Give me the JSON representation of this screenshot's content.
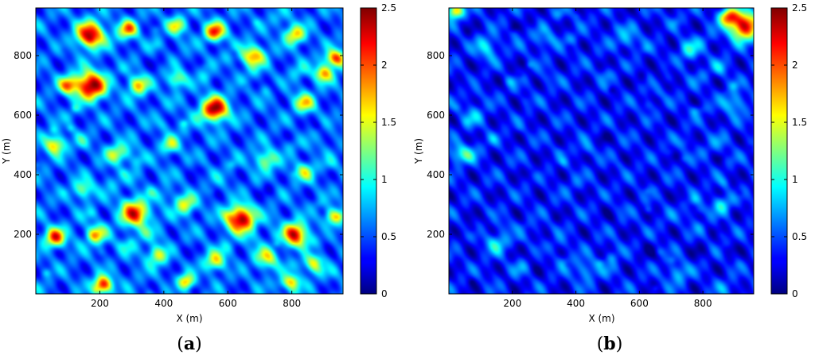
{
  "chart_data": [
    {
      "type": "heatmap",
      "panel_label": {
        "open": "(",
        "letter": "a",
        "close": ")"
      },
      "xlabel": "X (m)",
      "ylabel": "Y (m)",
      "xlim": [
        0,
        960
      ],
      "ylim": [
        0,
        960
      ],
      "xticks": [
        200,
        400,
        600,
        800
      ],
      "yticks": [
        200,
        400,
        600,
        800
      ],
      "colorbar": {
        "min": 0,
        "max": 2.5,
        "ticks": [
          0,
          0.5,
          1,
          1.5,
          2,
          2.5
        ]
      },
      "colormap": "jet",
      "field": {
        "background": 0.55,
        "hotspots": [
          {
            "x": 170,
            "y": 870,
            "v": 2.4,
            "r": 30
          },
          {
            "x": 290,
            "y": 890,
            "v": 1.9,
            "r": 20
          },
          {
            "x": 440,
            "y": 900,
            "v": 1.5,
            "r": 20
          },
          {
            "x": 560,
            "y": 880,
            "v": 2.1,
            "r": 22
          },
          {
            "x": 680,
            "y": 800,
            "v": 1.9,
            "r": 25
          },
          {
            "x": 810,
            "y": 870,
            "v": 1.7,
            "r": 22
          },
          {
            "x": 940,
            "y": 790,
            "v": 2.0,
            "r": 20
          },
          {
            "x": 100,
            "y": 700,
            "v": 1.8,
            "r": 20
          },
          {
            "x": 170,
            "y": 700,
            "v": 2.5,
            "r": 32
          },
          {
            "x": 320,
            "y": 700,
            "v": 1.7,
            "r": 22
          },
          {
            "x": 440,
            "y": 720,
            "v": 1.4,
            "r": 20
          },
          {
            "x": 560,
            "y": 620,
            "v": 2.5,
            "r": 28
          },
          {
            "x": 840,
            "y": 640,
            "v": 1.6,
            "r": 22
          },
          {
            "x": 900,
            "y": 740,
            "v": 1.8,
            "r": 20
          },
          {
            "x": 60,
            "y": 500,
            "v": 1.7,
            "r": 22
          },
          {
            "x": 250,
            "y": 470,
            "v": 1.4,
            "r": 22
          },
          {
            "x": 420,
            "y": 500,
            "v": 1.4,
            "r": 20
          },
          {
            "x": 720,
            "y": 450,
            "v": 1.4,
            "r": 24
          },
          {
            "x": 840,
            "y": 410,
            "v": 1.3,
            "r": 22
          },
          {
            "x": 150,
            "y": 350,
            "v": 1.3,
            "r": 22
          },
          {
            "x": 310,
            "y": 270,
            "v": 2.2,
            "r": 30
          },
          {
            "x": 470,
            "y": 300,
            "v": 1.5,
            "r": 22
          },
          {
            "x": 640,
            "y": 250,
            "v": 2.5,
            "r": 30
          },
          {
            "x": 810,
            "y": 200,
            "v": 2.3,
            "r": 26
          },
          {
            "x": 930,
            "y": 260,
            "v": 1.6,
            "r": 20
          },
          {
            "x": 60,
            "y": 190,
            "v": 2.1,
            "r": 22
          },
          {
            "x": 190,
            "y": 200,
            "v": 1.6,
            "r": 22
          },
          {
            "x": 380,
            "y": 130,
            "v": 1.5,
            "r": 22
          },
          {
            "x": 560,
            "y": 110,
            "v": 1.6,
            "r": 22
          },
          {
            "x": 720,
            "y": 120,
            "v": 1.6,
            "r": 24
          },
          {
            "x": 870,
            "y": 100,
            "v": 1.5,
            "r": 22
          },
          {
            "x": 210,
            "y": 30,
            "v": 2.3,
            "r": 20
          },
          {
            "x": 470,
            "y": 40,
            "v": 1.8,
            "r": 18
          },
          {
            "x": 800,
            "y": 40,
            "v": 1.5,
            "r": 18
          }
        ]
      }
    },
    {
      "type": "heatmap",
      "panel_label": {
        "open": "(",
        "letter": "b",
        "close": ")"
      },
      "xlabel": "X (m)",
      "ylabel": "Y (m)",
      "xlim": [
        0,
        960
      ],
      "ylim": [
        0,
        960
      ],
      "xticks": [
        200,
        400,
        600,
        800
      ],
      "yticks": [
        200,
        400,
        600,
        800
      ],
      "colorbar": {
        "min": 0,
        "max": 2.5,
        "ticks": [
          0,
          0.5,
          1,
          1.5,
          2,
          2.5
        ]
      },
      "colormap": "jet",
      "field": {
        "background": 0.35,
        "hotspots": [
          {
            "x": 930,
            "y": 900,
            "v": 2.4,
            "r": 32
          },
          {
            "x": 880,
            "y": 930,
            "v": 1.8,
            "r": 20
          },
          {
            "x": 20,
            "y": 950,
            "v": 1.8,
            "r": 18
          },
          {
            "x": 120,
            "y": 830,
            "v": 0.9,
            "r": 25
          },
          {
            "x": 300,
            "y": 860,
            "v": 0.8,
            "r": 25
          },
          {
            "x": 560,
            "y": 850,
            "v": 0.8,
            "r": 25
          },
          {
            "x": 760,
            "y": 820,
            "v": 0.9,
            "r": 25
          },
          {
            "x": 900,
            "y": 640,
            "v": 0.9,
            "r": 25
          },
          {
            "x": 30,
            "y": 470,
            "v": 0.9,
            "r": 22
          },
          {
            "x": 80,
            "y": 600,
            "v": 0.7,
            "r": 25
          },
          {
            "x": 860,
            "y": 300,
            "v": 0.9,
            "r": 22
          },
          {
            "x": 150,
            "y": 170,
            "v": 0.9,
            "r": 25
          },
          {
            "x": 430,
            "y": 80,
            "v": 0.8,
            "r": 25
          },
          {
            "x": 720,
            "y": 70,
            "v": 0.8,
            "r": 25
          }
        ]
      }
    }
  ]
}
